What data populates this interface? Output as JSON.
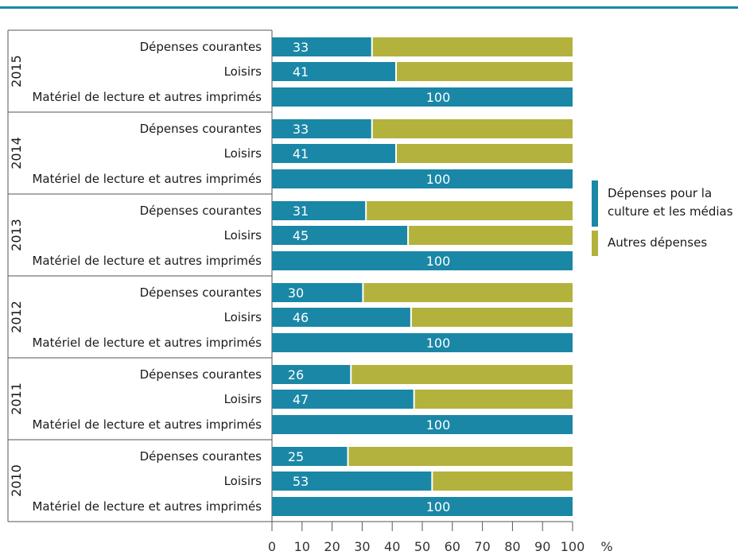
{
  "chart_data": {
    "type": "bar",
    "orientation": "horizontal",
    "stacked": true,
    "groups": [
      {
        "year": "2015",
        "categories": [
          "Dépenses courantes",
          "Loisirs",
          "Matériel de lecture et autres imprimés"
        ],
        "values": [
          33,
          41,
          100
        ]
      },
      {
        "year": "2014",
        "categories": [
          "Dépenses courantes",
          "Loisirs",
          "Matériel de lecture et autres imprimés"
        ],
        "values": [
          33,
          41,
          100
        ]
      },
      {
        "year": "2013",
        "categories": [
          "Dépenses courantes",
          "Loisirs",
          "Matériel de lecture et autres imprimés"
        ],
        "values": [
          31,
          45,
          100
        ]
      },
      {
        "year": "2012",
        "categories": [
          "Dépenses courantes",
          "Loisirs",
          "Matériel de lecture et autres imprimés"
        ],
        "values": [
          30,
          46,
          100
        ]
      },
      {
        "year": "2011",
        "categories": [
          "Dépenses courantes",
          "Loisirs",
          "Matériel de lecture et autres imprimés"
        ],
        "values": [
          26,
          47,
          100
        ]
      },
      {
        "year": "2010",
        "categories": [
          "Dépenses courantes",
          "Loisirs",
          "Matériel de lecture et autres imprimés"
        ],
        "values": [
          25,
          53,
          100
        ]
      }
    ],
    "series": [
      {
        "name": "Dépenses pour la culture et les médias",
        "color": "#1a87a6"
      },
      {
        "name": "Autres dépenses",
        "color": "#b3b23c"
      }
    ],
    "x_ticks": [
      "0",
      "10",
      "20",
      "30",
      "40",
      "50",
      "60",
      "70",
      "80",
      "90",
      "100"
    ],
    "xlim": [
      0,
      100
    ],
    "x_unit": "%",
    "legend_position": "right",
    "grid": false,
    "top_rule_color": "#1a87a6"
  }
}
